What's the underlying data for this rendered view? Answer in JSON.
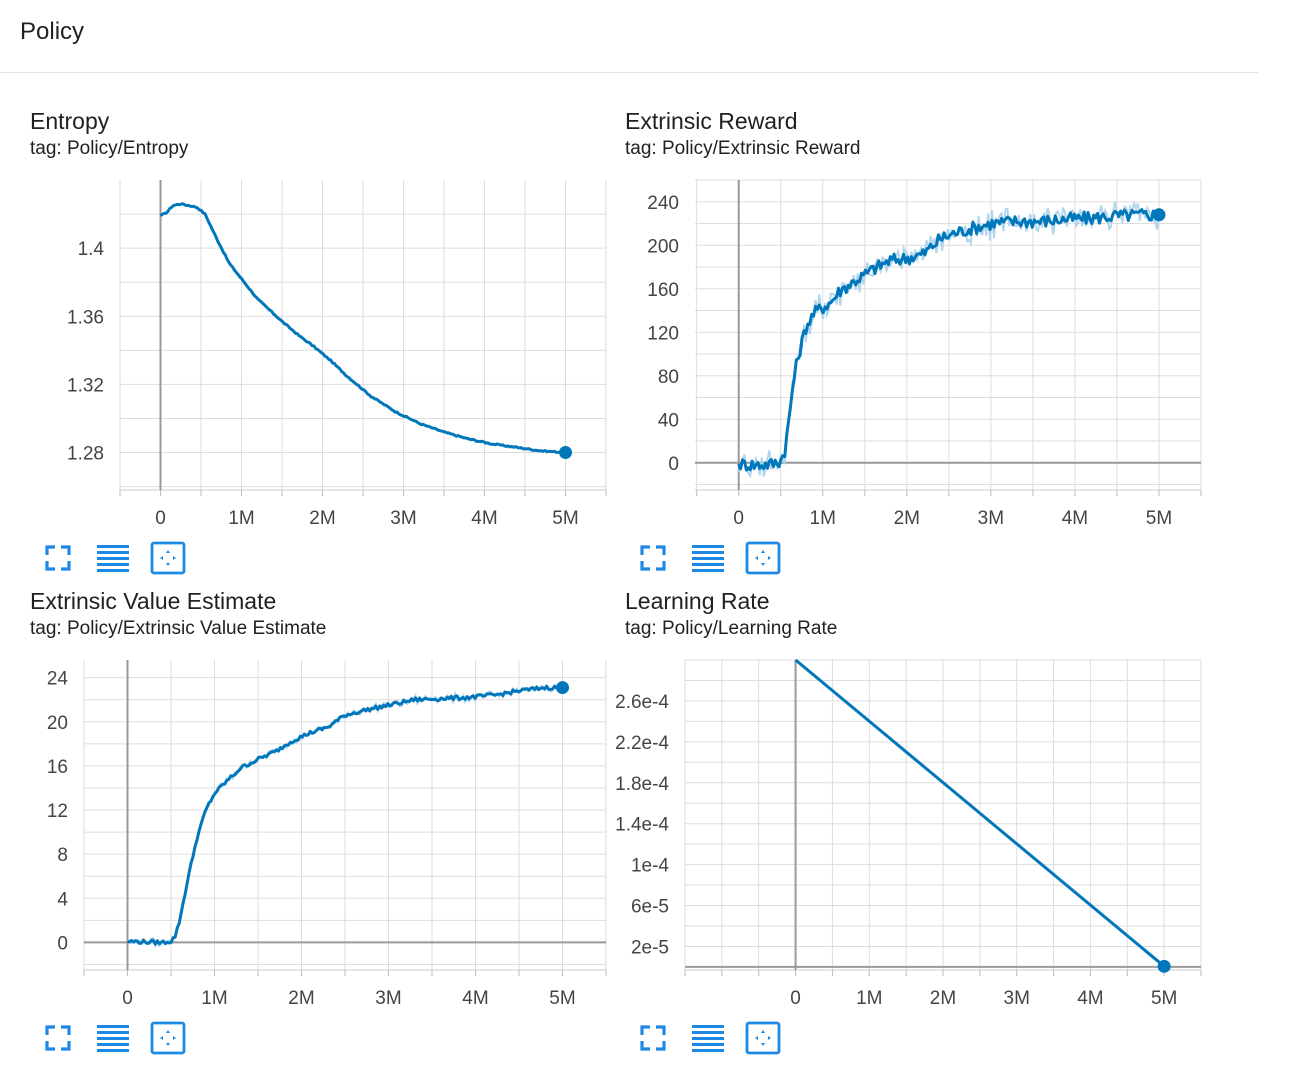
{
  "section": {
    "title": "Policy"
  },
  "colors": {
    "accent": "#0077bb",
    "smooth_shadow": "#a8d2ec",
    "axis": "#999999",
    "grid": "#dddddd",
    "icon": "#1e88e5"
  },
  "controls": {
    "icons": [
      "fullscreen-icon",
      "toggle-log-scale-icon",
      "fit-domain-icon"
    ]
  },
  "chart_data": [
    {
      "type": "line",
      "title": "Entropy",
      "tag": "tag: Policy/Entropy",
      "xlim": [
        -500000,
        5500000
      ],
      "ylim": [
        1.258,
        1.44
      ],
      "xticks": [
        0,
        1000000,
        2000000,
        3000000,
        4000000,
        5000000
      ],
      "xtick_labels": [
        "0",
        "1M",
        "2M",
        "3M",
        "4M",
        "5M"
      ],
      "yticks": [
        1.28,
        1.32,
        1.36,
        1.4
      ],
      "ytick_labels": [
        "1.28",
        "1.32",
        "1.36",
        "1.4"
      ],
      "grid": true,
      "noise": 0.0004,
      "shade": 0,
      "series": [
        {
          "x": [
            0,
            80000,
            150000,
            250000,
            350000,
            450000,
            550000,
            700000,
            850000,
            1000000,
            1200000,
            1500000,
            1700000,
            1900000,
            2100000,
            2300000,
            2600000,
            2900000,
            3200000,
            3500000,
            3800000,
            4100000,
            4400000,
            4700000,
            5000000
          ],
          "y": [
            1.419,
            1.421,
            1.425,
            1.426,
            1.425,
            1.424,
            1.42,
            1.405,
            1.391,
            1.382,
            1.37,
            1.357,
            1.349,
            1.342,
            1.334,
            1.325,
            1.313,
            1.304,
            1.297,
            1.292,
            1.288,
            1.285,
            1.283,
            1.281,
            1.28
          ]
        }
      ]
    },
    {
      "type": "line",
      "title": "Extrinsic Reward",
      "tag": "tag: Policy/Extrinsic Reward",
      "xlim": [
        -520000,
        5500000
      ],
      "ylim": [
        -25,
        260
      ],
      "xticks": [
        0,
        1000000,
        2000000,
        3000000,
        4000000,
        5000000
      ],
      "xtick_labels": [
        "0",
        "1M",
        "2M",
        "3M",
        "4M",
        "5M"
      ],
      "yticks": [
        0,
        40,
        80,
        120,
        160,
        200,
        240
      ],
      "ytick_labels": [
        "0",
        "40",
        "80",
        "120",
        "160",
        "200",
        "240"
      ],
      "grid": true,
      "noise": 6,
      "shade": 10,
      "series": [
        {
          "x": [
            0,
            200000,
            400000,
            500000,
            550000,
            600000,
            650000,
            700000,
            800000,
            900000,
            1000000,
            1100000,
            1200000,
            1400000,
            1600000,
            1800000,
            2000000,
            2200000,
            2400000,
            2600000,
            2800000,
            3000000,
            3300000,
            3600000,
            3900000,
            4200000,
            4500000,
            4800000,
            5000000
          ],
          "y": [
            -1,
            -2,
            -1,
            2,
            12,
            40,
            75,
            95,
            125,
            138,
            143,
            148,
            158,
            168,
            178,
            186,
            188,
            192,
            206,
            212,
            216,
            220,
            222,
            222,
            224,
            225,
            227,
            228,
            228
          ]
        }
      ]
    },
    {
      "type": "line",
      "title": "Extrinsic Value Estimate",
      "tag": "tag: Policy/Extrinsic Value Estimate",
      "xlim": [
        -500000,
        5500000
      ],
      "ylim": [
        -2.5,
        25.6
      ],
      "xticks": [
        0,
        1000000,
        2000000,
        3000000,
        4000000,
        5000000
      ],
      "xtick_labels": [
        "0",
        "1M",
        "2M",
        "3M",
        "4M",
        "5M"
      ],
      "yticks": [
        0,
        4,
        8,
        12,
        16,
        20,
        24
      ],
      "ytick_labels": [
        "0",
        "4",
        "8",
        "12",
        "16",
        "20",
        "24"
      ],
      "grid": true,
      "noise": 0.18,
      "shade": 0.25,
      "series": [
        {
          "x": [
            0,
            200000,
            400000,
            500000,
            550000,
            600000,
            650000,
            700000,
            800000,
            900000,
            1000000,
            1100000,
            1300000,
            1500000,
            1700000,
            1900000,
            2100000,
            2300000,
            2500000,
            2700000,
            3000000,
            3300000,
            3600000,
            3900000,
            4200000,
            4500000,
            4800000,
            5000000
          ],
          "y": [
            0.1,
            0.05,
            0,
            0.1,
            0.6,
            2.0,
            4.0,
            6.0,
            9.5,
            12.0,
            13.5,
            14.3,
            15.8,
            16.6,
            17.3,
            18.3,
            19.0,
            19.5,
            20.6,
            21.0,
            21.5,
            22.0,
            22.1,
            22.2,
            22.4,
            22.8,
            23.1,
            23.1
          ]
        }
      ]
    },
    {
      "type": "line",
      "title": "Learning Rate",
      "tag": "tag: Policy/Learning Rate",
      "xlim": [
        -1500000,
        5500000
      ],
      "ylim": [
        -3e-06,
        0.0003
      ],
      "xticks": [
        0,
        1000000,
        2000000,
        3000000,
        4000000,
        5000000
      ],
      "xtick_labels": [
        "0",
        "1M",
        "2M",
        "3M",
        "4M",
        "5M"
      ],
      "yticks": [
        2e-05,
        6e-05,
        0.0001,
        0.00014,
        0.00018,
        0.00022,
        0.00026
      ],
      "ytick_labels": [
        "2e-5",
        "6e-5",
        "1e-4",
        "1.4e-4",
        "1.8e-4",
        "2.2e-4",
        "2.6e-4"
      ],
      "grid": true,
      "noise": 0,
      "shade": 0,
      "series": [
        {
          "x": [
            0,
            5000000
          ],
          "y": [
            0.0003,
            6e-07
          ]
        }
      ]
    }
  ]
}
